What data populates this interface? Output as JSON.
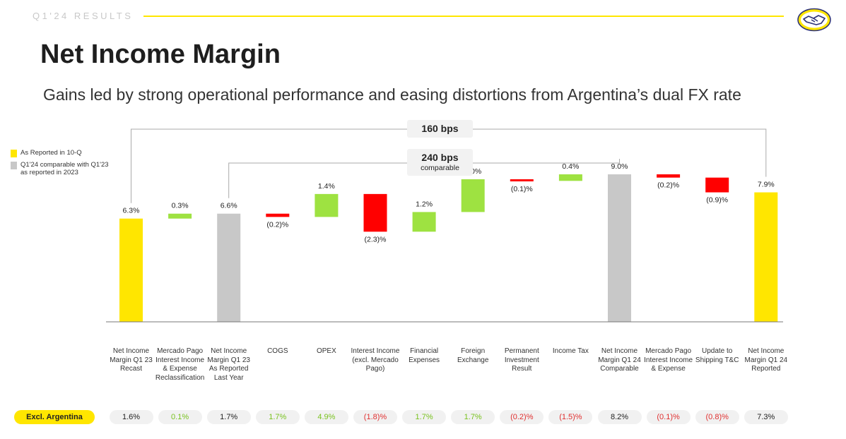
{
  "header": {
    "section_label": "Q1'24 RESULTS"
  },
  "title": "Net Income Margin",
  "subtitle": "Gains led by strong operational performance and easing distortions from Argentina’s dual FX rate",
  "legend": [
    {
      "label": "As Reported in 10-Q",
      "color": "#ffe600"
    },
    {
      "label": "Q1'24 comparable with Q1'23 as reported in 2023",
      "color": "#c8c8c8"
    }
  ],
  "callouts": {
    "total": {
      "value": "160 bps"
    },
    "comparable": {
      "value": "240 bps",
      "sub": "comparable"
    }
  },
  "chart_data": {
    "type": "bar",
    "subtype": "waterfall",
    "categories": [
      "Net Income Margin Q1 23 Recast",
      "Mercado Pago Interest Income & Expense Reclassification",
      "Net Income Margin Q1 23 As Reported Last Year",
      "COGS",
      "OPEX",
      "Interest Income (excl. Mercado Pago)",
      "Financial Expenses",
      "Foreign Exchange",
      "Permanent Investment Result",
      "Income Tax",
      "Net Income Margin Q1 24 Comparable",
      "Mercado Pago Interest Income & Expense",
      "Update to Shipping T&C",
      "Net Income Margin Q1 24 Reported"
    ],
    "values": [
      6.3,
      0.3,
      6.6,
      -0.2,
      1.4,
      -2.3,
      1.2,
      2.0,
      -0.1,
      0.4,
      9.0,
      -0.2,
      -0.9,
      7.9
    ],
    "kinds": [
      "total-reported",
      "delta",
      "total-comparable",
      "delta",
      "delta",
      "delta",
      "delta",
      "delta",
      "delta",
      "delta",
      "total-comparable",
      "delta",
      "delta",
      "total-reported"
    ],
    "value_labels": [
      "6.3%",
      "0.3%",
      "6.6%",
      "(0.2)%",
      "1.4%",
      "(2.3)%",
      "1.2%",
      "2.0%",
      "(0.1)%",
      "0.4%",
      "9.0%",
      "(0.2)%",
      "(0.9)%",
      "7.9%"
    ],
    "colors": {
      "total-reported": "#ffe600",
      "total-comparable": "#c8c8c8",
      "positive": "#9ee241",
      "negative": "#ff0000"
    },
    "ylim": [
      0,
      9.6
    ],
    "excl_argentina_label": "Excl. Argentina",
    "excl_argentina": [
      "1.6%",
      "0.1%",
      "1.7%",
      "1.7%",
      "4.9%",
      "(1.8)%",
      "1.7%",
      "1.7%",
      "(0.2)%",
      "(1.5)%",
      "8.2%",
      "(0.1)%",
      "(0.8)%",
      "7.3%"
    ],
    "excl_argentina_tone": [
      "neutral",
      "positive",
      "neutral",
      "positive",
      "positive",
      "negative",
      "positive",
      "positive",
      "negative",
      "negative",
      "neutral",
      "negative",
      "negative",
      "neutral"
    ]
  }
}
